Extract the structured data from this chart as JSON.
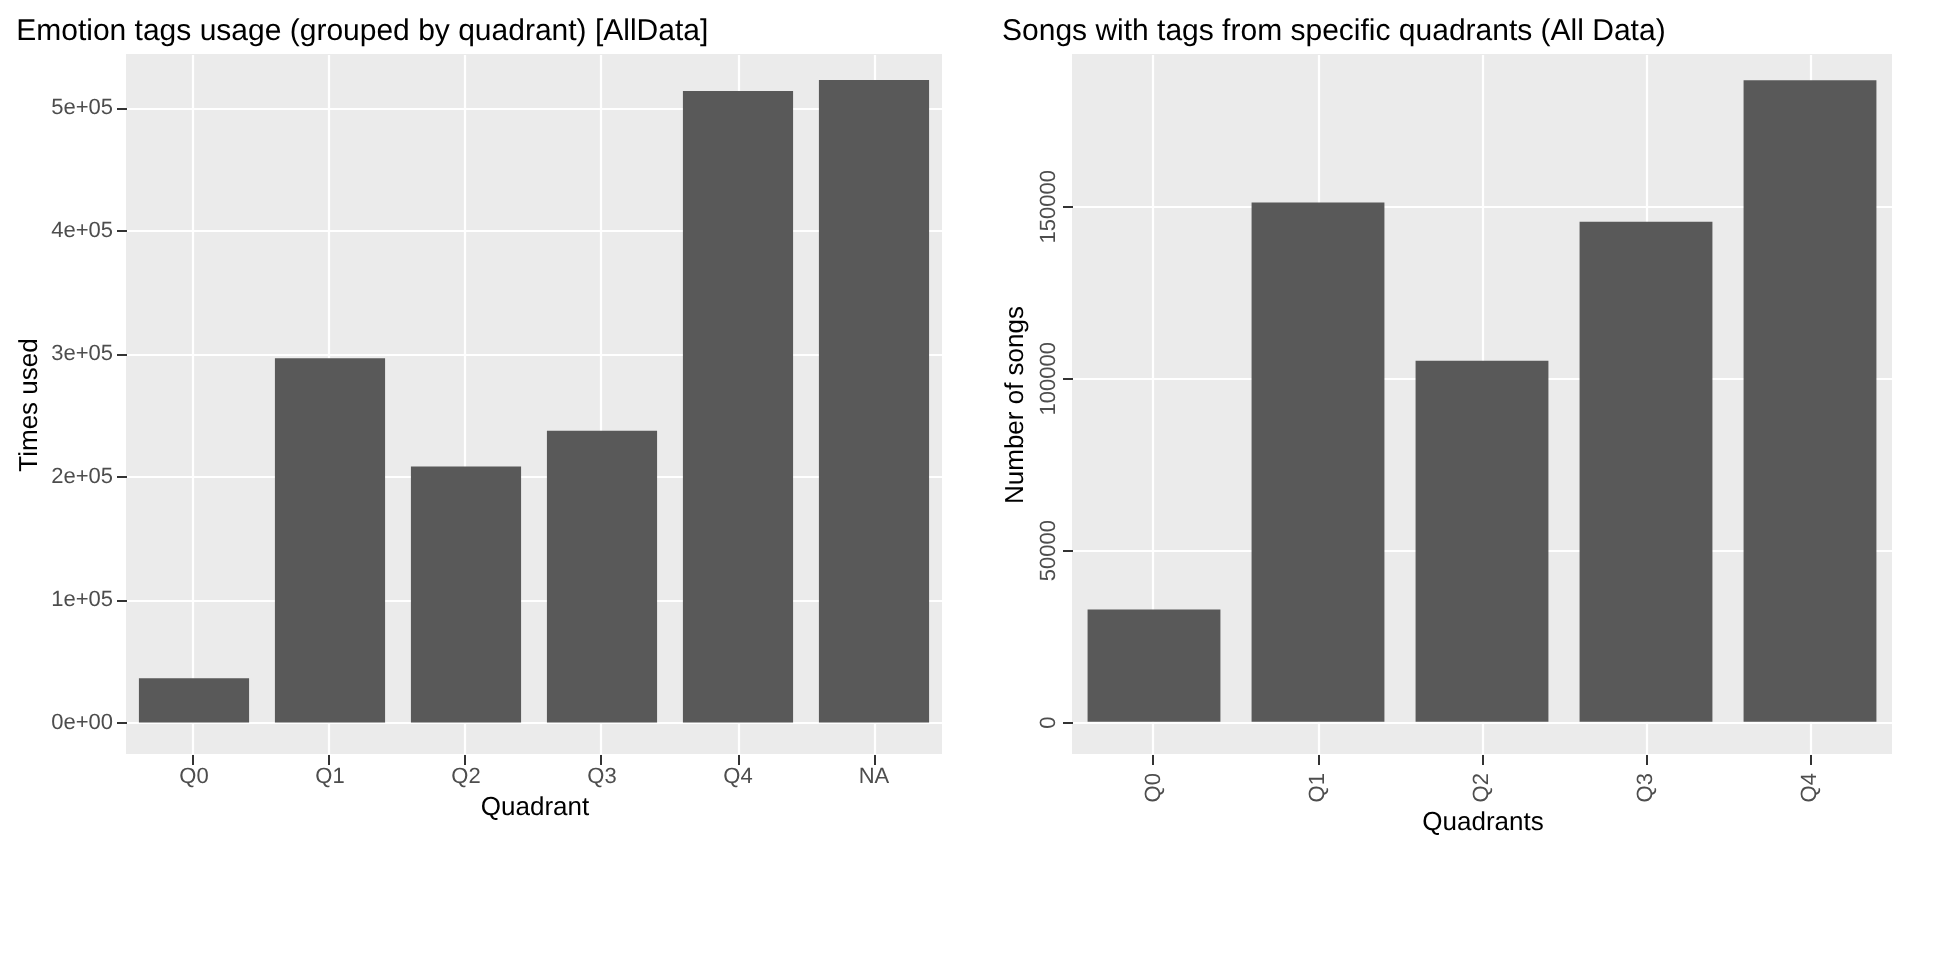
{
  "chart_data": [
    {
      "type": "bar",
      "title": "Emotion tags usage (grouped by quadrant) [AllData]",
      "xlabel": "Quadrant",
      "ylabel": "Times used",
      "categories": [
        "Q0",
        "Q1",
        "Q2",
        "Q3",
        "Q4",
        "NA"
      ],
      "values": [
        36000,
        296000,
        208000,
        237000,
        513000,
        522000
      ],
      "color": "#595959",
      "ylim": [
        -25600,
        543100
      ],
      "yticks": [
        {
          "value": 0,
          "label": "0e+00"
        },
        {
          "value": 100000,
          "label": "1e+05"
        },
        {
          "value": 200000,
          "label": "2e+05"
        },
        {
          "value": 300000,
          "label": "3e+05"
        },
        {
          "value": 400000,
          "label": "4e+05"
        },
        {
          "value": 500000,
          "label": "5e+05"
        }
      ],
      "grid": true
    },
    {
      "type": "bar",
      "title": "Songs with tags from specific quadrants (All Data)",
      "xlabel": "Quadrants",
      "ylabel": "Number of songs",
      "categories": [
        "Q0",
        "Q1",
        "Q2",
        "Q3",
        "Q4"
      ],
      "values": [
        32600,
        150900,
        104900,
        145300,
        186500
      ],
      "color": "#595959",
      "ylim": [
        -9400,
        194100
      ],
      "yticks": [
        0,
        50000,
        100000,
        150000
      ],
      "grid": true
    }
  ]
}
